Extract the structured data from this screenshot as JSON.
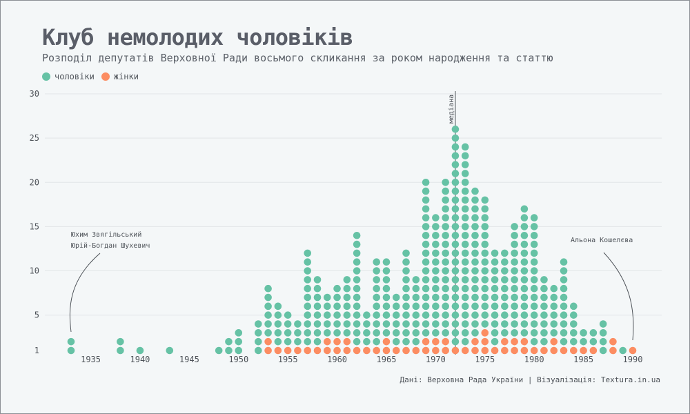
{
  "header": {
    "title": "Клуб немолодих чоловіків",
    "subtitle": "Розподіл депутатів Верховної Ради восьмого скликання за роком народження та статтю"
  },
  "legend": {
    "men_label": "чоловіки",
    "women_label": "жінки"
  },
  "colors": {
    "men": "#66c2a5",
    "women": "#fc8d62",
    "grid": "#e2e6e8"
  },
  "annotations": {
    "left_names": [
      "Юхим Звягільський",
      "Юрій-Богдан Шухевич"
    ],
    "right_name": "Альона Кошелєва",
    "median_label": "медіана"
  },
  "source": "Дані: Верховна Рада України | Візуалізація: Textura.in.ua",
  "chart_data": {
    "type": "scatter",
    "x_ticks": [
      1935,
      1940,
      1945,
      1950,
      1955,
      1960,
      1965,
      1970,
      1975,
      1980,
      1985,
      1990
    ],
    "y_ticks": [
      1,
      5,
      10,
      15,
      20,
      25,
      30
    ],
    "xlim": [
      1931,
      1993
    ],
    "ylim": [
      1,
      30
    ],
    "median_year": 1972,
    "grid": true,
    "legend_position": "top-left",
    "series": [
      {
        "name": "чоловіки",
        "years": [
          1933,
          1938,
          1940,
          1943,
          1948,
          1949,
          1950,
          1952,
          1953,
          1954,
          1955,
          1956,
          1957,
          1958,
          1959,
          1960,
          1961,
          1962,
          1963,
          1964,
          1965,
          1966,
          1967,
          1968,
          1969,
          1970,
          1971,
          1972,
          1973,
          1974,
          1975,
          1976,
          1977,
          1978,
          1979,
          1980,
          1981,
          1982,
          1983,
          1984,
          1985,
          1986,
          1987,
          1988,
          1989,
          1990
        ],
        "counts": [
          2,
          2,
          1,
          1,
          1,
          2,
          3,
          4,
          6,
          5,
          4,
          3,
          11,
          8,
          5,
          6,
          7,
          13,
          4,
          10,
          9,
          6,
          11,
          8,
          18,
          14,
          18,
          25,
          23,
          17,
          15,
          11,
          10,
          13,
          15,
          15,
          8,
          6,
          10,
          5,
          2,
          2,
          4,
          0,
          1,
          0
        ]
      },
      {
        "name": "жінки",
        "years": [
          1933,
          1938,
          1940,
          1943,
          1948,
          1949,
          1950,
          1952,
          1953,
          1954,
          1955,
          1956,
          1957,
          1958,
          1959,
          1960,
          1961,
          1962,
          1963,
          1964,
          1965,
          1966,
          1967,
          1968,
          1969,
          1970,
          1971,
          1972,
          1973,
          1974,
          1975,
          1976,
          1977,
          1978,
          1979,
          1980,
          1981,
          1982,
          1983,
          1984,
          1985,
          1986,
          1987,
          1988,
          1989,
          1990
        ],
        "counts": [
          0,
          0,
          0,
          0,
          0,
          0,
          0,
          0,
          2,
          1,
          1,
          1,
          1,
          1,
          2,
          2,
          2,
          1,
          1,
          1,
          2,
          1,
          1,
          1,
          2,
          2,
          2,
          1,
          1,
          2,
          3,
          1,
          2,
          2,
          2,
          1,
          1,
          2,
          1,
          1,
          1,
          1,
          0,
          2,
          0,
          1
        ]
      }
    ]
  }
}
